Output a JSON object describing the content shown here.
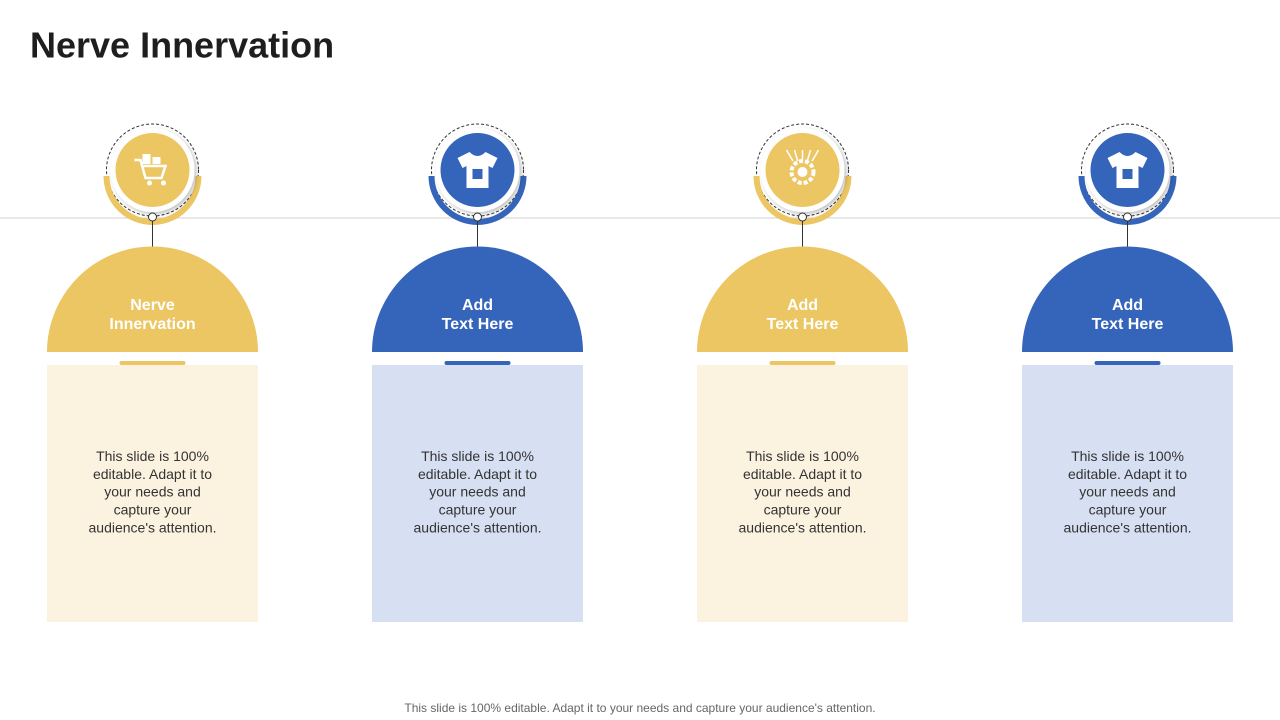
{
  "title": "Nerve Innervation",
  "columns": [
    {
      "heading": [
        "Nerve",
        "Innervation"
      ],
      "body": [
        "This slide is 100%",
        "editable. Adapt it to",
        "your needs and",
        "capture your",
        "audience's attention."
      ]
    },
    {
      "heading": [
        "Add",
        "Text Here"
      ],
      "body": [
        "This slide is 100%",
        "editable. Adapt it to",
        "your needs and",
        "capture your",
        "audience's attention."
      ]
    },
    {
      "heading": [
        "Add",
        "Text Here"
      ],
      "body": [
        "This slide is 100%",
        "editable. Adapt it to",
        "your needs and",
        "capture your",
        "audience's attention."
      ]
    },
    {
      "heading": [
        "Add",
        "Text Here"
      ],
      "body": [
        "This slide is 100%",
        "editable. Adapt it to",
        "your needs and",
        "capture your",
        "audience's attention."
      ]
    }
  ],
  "footer": "This slide is 100% editable. Adapt it to your needs and capture your audience's attention."
}
